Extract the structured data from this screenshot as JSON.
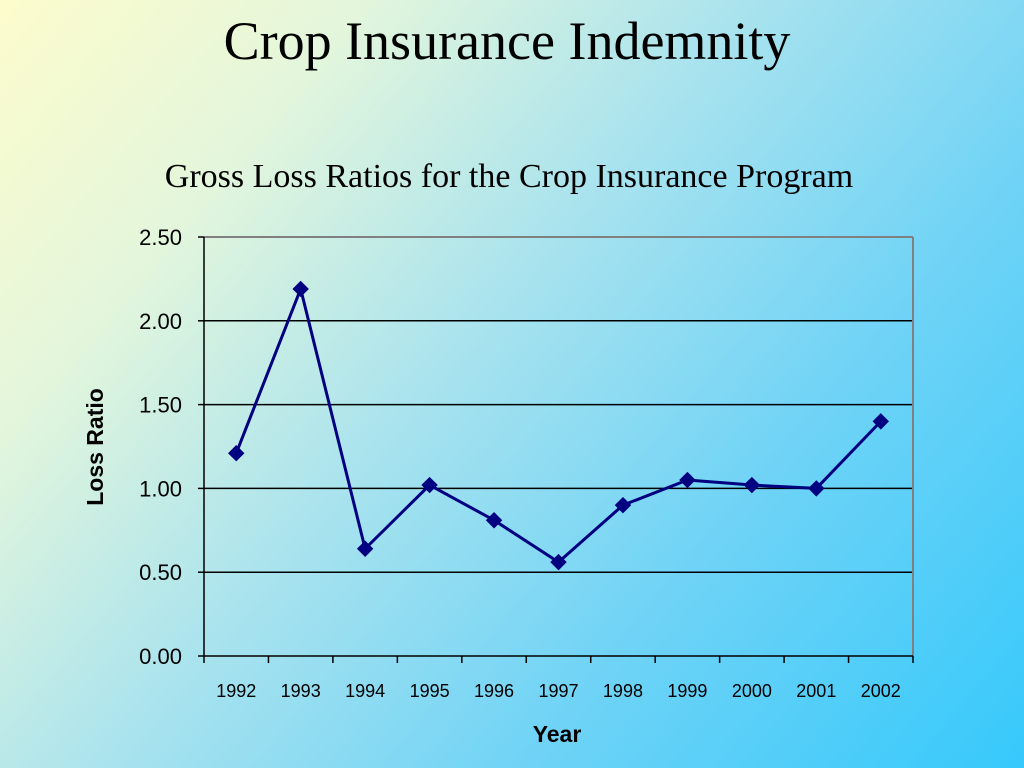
{
  "slide": {
    "title": "Crop Insurance Indemnity"
  },
  "chart_data": {
    "type": "line",
    "title": "Gross Loss Ratios for the Crop Insurance Program",
    "xlabel": "Year",
    "ylabel": "Loss Ratio",
    "categories": [
      "1992",
      "1993",
      "1994",
      "1995",
      "1996",
      "1997",
      "1998",
      "1999",
      "2000",
      "2001",
      "2002"
    ],
    "values": [
      1.21,
      2.19,
      0.64,
      1.02,
      0.81,
      0.56,
      0.9,
      1.05,
      1.02,
      1.0,
      1.4
    ],
    "ylim": [
      0,
      2.5
    ],
    "yticks": [
      "0.00",
      "0.50",
      "1.00",
      "1.50",
      "2.00",
      "2.50"
    ],
    "grid": true,
    "legend": "none",
    "colors": {
      "line": "#000080",
      "marker": "#000080",
      "grid": "#000000"
    }
  }
}
